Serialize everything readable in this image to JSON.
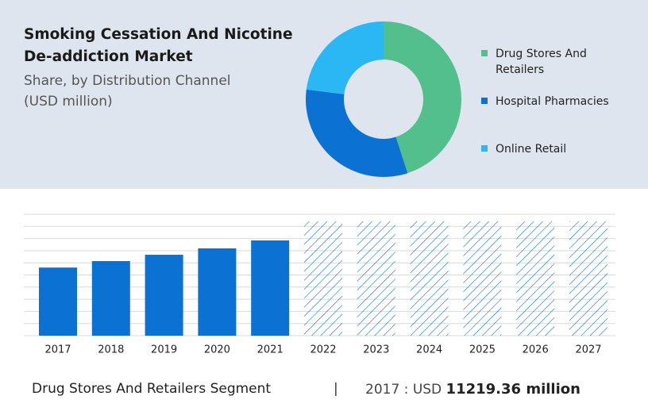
{
  "chart_data": [
    {
      "type": "donut",
      "title": "Smoking Cessation And Nicotine De-addiction Market",
      "subtitle": "Share, by Distribution Channel",
      "unit_label": "(USD million)",
      "categories": [
        "Drug Stores And Retailers",
        "Hospital Pharmacies",
        "Online Retail"
      ],
      "values": [
        45,
        32,
        23
      ],
      "colors": [
        "#52bf8d",
        "#0b72d4",
        "#2bb7f3"
      ],
      "legend": "right"
    },
    {
      "type": "bar",
      "categories": [
        "2017",
        "2018",
        "2019",
        "2020",
        "2021",
        "2022",
        "2023",
        "2024",
        "2025",
        "2026",
        "2027"
      ],
      "values": [
        11219.36,
        12290,
        13330,
        14380,
        15690,
        null,
        null,
        null,
        null,
        null,
        null
      ],
      "color": "#0b72d4",
      "ylim": [
        0,
        20000
      ],
      "yticks": [
        0,
        2000,
        4000,
        6000,
        8000,
        10000,
        12000,
        14000,
        16000,
        18000,
        20000
      ],
      "grid": true
    }
  ],
  "footer": {
    "segment": "Drug Stores And Retailers Segment",
    "year": "2017",
    "currency": "USD",
    "value": "11219.36 million"
  }
}
